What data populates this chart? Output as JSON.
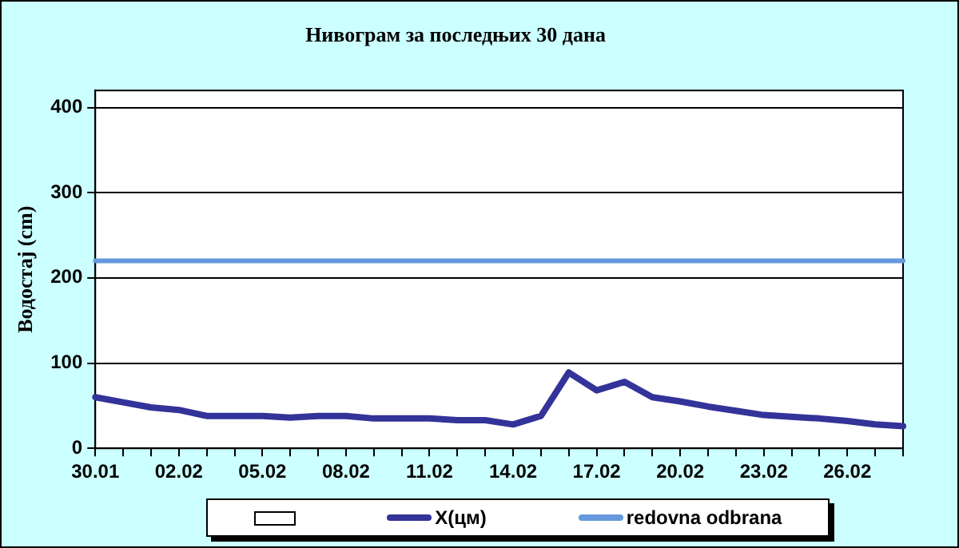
{
  "chart_data": {
    "type": "line",
    "title": "Нивограм за последњих 30 дана",
    "ylabel": "Водостај (cm)",
    "categories": [
      "30.01",
      null,
      null,
      "02.02",
      null,
      null,
      "05.02",
      null,
      null,
      "08.02",
      null,
      null,
      "11.02",
      null,
      null,
      "14.02",
      null,
      null,
      "17.02",
      null,
      null,
      "20.02",
      null,
      null,
      "23.02",
      null,
      null,
      "26.02",
      null,
      null
    ],
    "series": [
      {
        "name": "X(цм)",
        "color": "#333399",
        "values": [
          60,
          54,
          48,
          45,
          38,
          38,
          38,
          36,
          38,
          38,
          35,
          35,
          35,
          33,
          33,
          28,
          38,
          89,
          68,
          78,
          60,
          55,
          49,
          44,
          39,
          37,
          35,
          32,
          28,
          26
        ]
      },
      {
        "name": "redovna odbrana",
        "color": "#6699dd",
        "values": [
          220,
          220,
          220,
          220,
          220,
          220,
          220,
          220,
          220,
          220,
          220,
          220,
          220,
          220,
          220,
          220,
          220,
          220,
          220,
          220,
          220,
          220,
          220,
          220,
          220,
          220,
          220,
          220,
          220,
          220
        ]
      }
    ],
    "ylim": [
      0,
      420
    ],
    "yticks": [
      0,
      100,
      200,
      300,
      400
    ],
    "grid": "y",
    "legend": "bottom",
    "marker": "none",
    "line_style": "solid"
  }
}
